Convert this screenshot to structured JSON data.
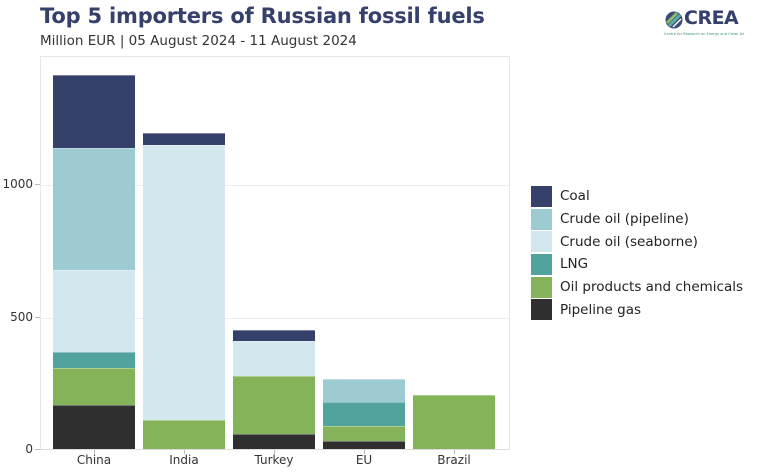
{
  "header": {
    "title": "Top 5 importers of Russian fossil fuels",
    "subtitle": "Million EUR | 05 August 2024 - 11 August 2024"
  },
  "logo": {
    "text": "CREA",
    "tagline": "Centre for Research on Energy and Clean Air"
  },
  "colors": {
    "Coal": "#35406b",
    "Crude oil (pipeline)": "#9ccbd2",
    "Crude oil (seaborne)": "#d3e7ee",
    "LNG": "#52a39e",
    "Oil products and chemicals": "#84b35a",
    "Pipeline gas": "#2f2f2f"
  },
  "legend": [
    {
      "label": "Coal",
      "color": "#35406b"
    },
    {
      "label": "Crude oil (pipeline)",
      "color": "#9ccbd2"
    },
    {
      "label": "Crude oil (seaborne)",
      "color": "#d3e7ee"
    },
    {
      "label": "LNG",
      "color": "#52a39e"
    },
    {
      "label": "Oil products and chemicals",
      "color": "#84b35a"
    },
    {
      "label": "Pipeline gas",
      "color": "#2f2f2f"
    }
  ],
  "yaxis": {
    "ticks": [
      "0",
      "500",
      "1000"
    ]
  },
  "chart_data": {
    "type": "bar",
    "stacked": true,
    "title": "Top 5 importers of Russian fossil fuels",
    "subtitle": "Million EUR | 05 August 2024 - 11 August 2024",
    "xlabel": "",
    "ylabel": "Million EUR",
    "ylim": [
      0,
      1480
    ],
    "yticks": [
      0,
      500,
      1000
    ],
    "grid": true,
    "legend_position": "right",
    "categories": [
      "China",
      "India",
      "Turkey",
      "EU",
      "Brazil"
    ],
    "series": [
      {
        "name": "Pipeline gas",
        "values": [
          166,
          0,
          57,
          30,
          0
        ]
      },
      {
        "name": "Oil products and chemicals",
        "values": [
          140,
          109,
          218,
          57,
          204
        ]
      },
      {
        "name": "LNG",
        "values": [
          60,
          0,
          0,
          90,
          0
        ]
      },
      {
        "name": "Crude oil (seaborne)",
        "values": [
          309,
          1038,
          133,
          0,
          0
        ]
      },
      {
        "name": "Crude oil (pipeline)",
        "values": [
          461,
          0,
          0,
          87,
          0
        ]
      },
      {
        "name": "Coal",
        "values": [
          275,
          45,
          41,
          0,
          0
        ]
      }
    ],
    "totals": [
      1411,
      1192,
      449,
      264,
      204
    ]
  }
}
